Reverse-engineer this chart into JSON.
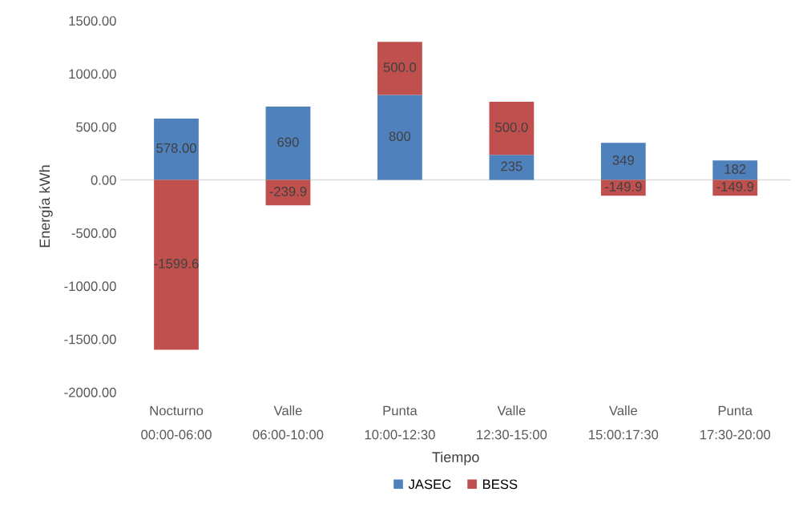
{
  "chart_data": {
    "type": "bar",
    "stacked": true,
    "xlabel": "Tiempo",
    "ylabel": "Energía kWh",
    "categories": [
      "Nocturno\n00:00-06:00",
      "Valle\n06:00-10:00",
      "Punta\n10:00-12:30",
      "Valle\n12:30-15:00",
      "Valle\n15:00:17:30",
      "Punta\n17:30-20:00"
    ],
    "series": [
      {
        "name": "JASEC",
        "color": "#4f81bd",
        "values": [
          578,
          690,
          800,
          235,
          349,
          182
        ],
        "value_labels": [
          "578.00",
          "690",
          "800",
          "235",
          "349",
          "182"
        ]
      },
      {
        "name": "BESS",
        "color": "#c0504d",
        "values": [
          -1599.6,
          -239.9,
          500,
          500,
          -149.9,
          -149.9
        ],
        "value_labels": [
          "-1599.6",
          "-239.9",
          "500.0",
          "500.0",
          "-149.9",
          "-149.9"
        ]
      }
    ],
    "ylim": [
      -2000,
      1500
    ],
    "yticks": [
      {
        "value": -2000,
        "label": "-2000.00"
      },
      {
        "value": -1500,
        "label": "-1500.00"
      },
      {
        "value": -1000,
        "label": "-1000.00"
      },
      {
        "value": -500,
        "label": "-500.00"
      },
      {
        "value": 0,
        "label": "0.00"
      },
      {
        "value": 500,
        "label": "500.00"
      },
      {
        "value": 1000,
        "label": "1000.00"
      },
      {
        "value": 1500,
        "label": "1500.00"
      }
    ],
    "ref_lines": [
      {
        "axis": "y",
        "value": 0,
        "color": "#d9d9d9"
      }
    ],
    "grid": false,
    "legend": "bottom"
  }
}
